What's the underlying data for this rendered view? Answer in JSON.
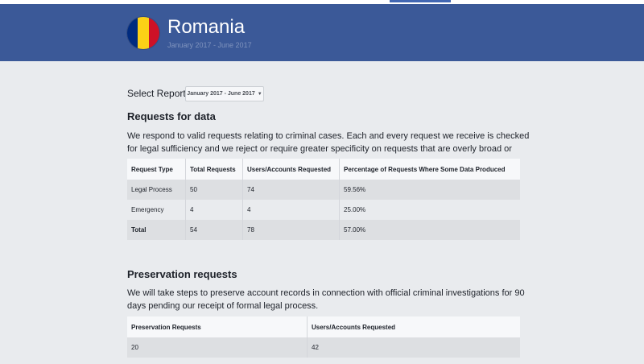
{
  "header": {
    "country": "Romania",
    "period": "January 2017 - June 2017",
    "flag_colors": [
      "#002b7f",
      "#fcd116",
      "#ce1126"
    ]
  },
  "report_selector": {
    "label": "Select Report",
    "value": "January 2017 - June 2017"
  },
  "requests_section": {
    "title": "Requests for data",
    "description": "We respond to valid requests relating to criminal cases. Each and every request we receive is checked for legal sufficiency and we reject or require greater specificity on requests that are overly broad or vague.",
    "columns": [
      "Request Type",
      "Total Requests",
      "Users/Accounts Requested",
      "Percentage of Requests Where Some Data Produced"
    ],
    "rows": [
      [
        "Legal Process",
        "50",
        "74",
        "59.56%"
      ],
      [
        "Emergency",
        "4",
        "4",
        "25.00%"
      ],
      [
        "Total",
        "54",
        "78",
        "57.00%"
      ]
    ]
  },
  "preservation_section": {
    "title": "Preservation requests",
    "description": "We will take steps to preserve account records in connection with official criminal investigations for 90 days pending our receipt of formal legal process.",
    "columns": [
      "Preservation Requests",
      "Users/Accounts Requested"
    ],
    "rows": [
      [
        "20",
        "42"
      ]
    ]
  }
}
